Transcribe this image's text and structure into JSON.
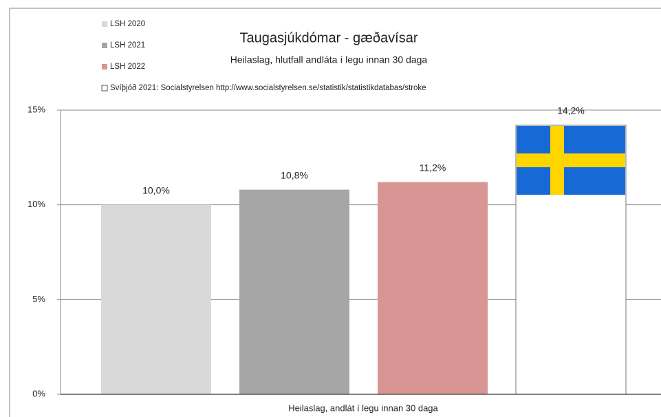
{
  "chart_data": {
    "type": "bar",
    "title": "Taugasjúkdómar - gæðavísar",
    "subtitle": "Heilaslag, hlutfall andláta í legu innan 30 daga",
    "categories": [
      "Heilaslag, andlát í legu innan 30 daga"
    ],
    "series": [
      {
        "name": "LSH 2020",
        "color": "#d9d9d9",
        "values": [
          10.0
        ],
        "value_labels": [
          "10,0%"
        ]
      },
      {
        "name": "LSH 2021",
        "color": "#a6a6a6",
        "values": [
          10.8
        ],
        "value_labels": [
          "10,8%"
        ]
      },
      {
        "name": "LSH 2022",
        "color": "#d99594",
        "values": [
          11.2
        ],
        "value_labels": [
          "11,2%"
        ]
      },
      {
        "name": "Svíþjóð 2021: Socialstyrelsen http://www.socialstyrelsen.se/statistik/statistikdatabas/stroke",
        "color": "#ffffff",
        "values": [
          14.2
        ],
        "value_labels": [
          "14,2%"
        ]
      }
    ],
    "ylim": [
      0,
      15
    ],
    "yticks": [
      {
        "value": 0,
        "label": "0%"
      },
      {
        "value": 5,
        "label": "5%"
      },
      {
        "value": 10,
        "label": "10%"
      },
      {
        "value": 15,
        "label": "15%"
      }
    ],
    "grid": true
  }
}
